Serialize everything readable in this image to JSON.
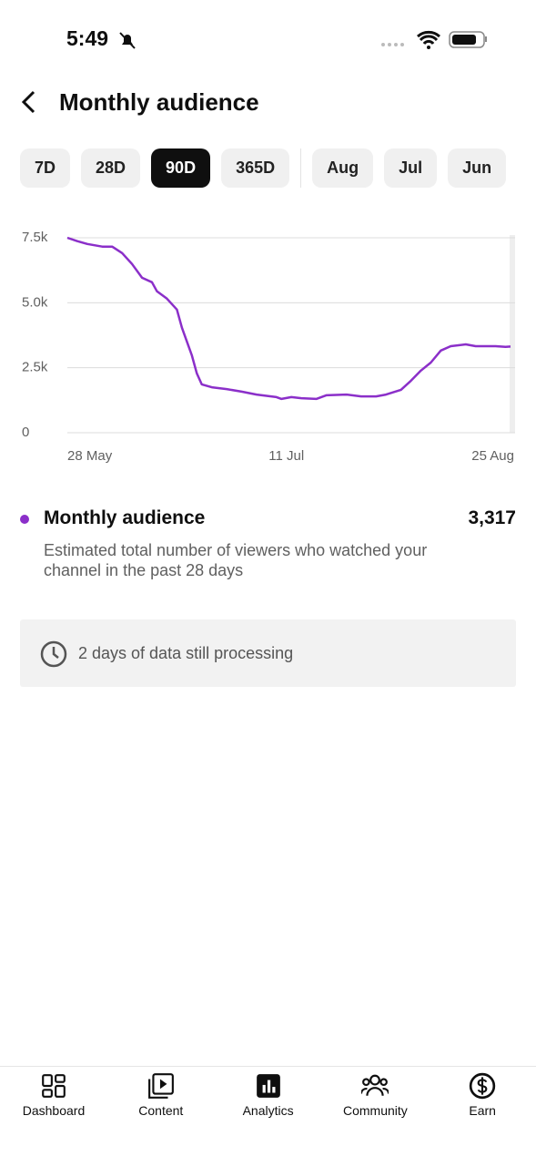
{
  "status_bar": {
    "time": "5:49"
  },
  "header": {
    "title": "Monthly audience"
  },
  "tabs": [
    "7D",
    "28D",
    "90D",
    "365D",
    "Aug",
    "Jul",
    "Jun"
  ],
  "active_tab": 2,
  "chart_data": {
    "type": "line",
    "x": [
      "28 May",
      "30 May",
      "1 Jun",
      "4 Jun",
      "6 Jun",
      "8 Jun",
      "10 Jun",
      "12 Jun",
      "14 Jun",
      "15 Jun",
      "17 Jun",
      "19 Jun",
      "20 Jun",
      "22 Jun",
      "23 Jun",
      "24 Jun",
      "26 Jun",
      "29 Jun",
      "2 Jul",
      "5 Jul",
      "9 Jul",
      "10 Jul",
      "12 Jul",
      "14 Jul",
      "17 Jul",
      "19 Jul",
      "23 Jul",
      "26 Jul",
      "29 Jul",
      "31 Jul",
      "3 Aug",
      "5 Aug",
      "7 Aug",
      "9 Aug",
      "11 Aug",
      "13 Aug",
      "16 Aug",
      "18 Aug",
      "22 Aug",
      "24 Aug",
      "25 Aug"
    ],
    "series": [
      {
        "name": "Monthly audience",
        "color": "#8b2fc9",
        "values": [
          7500,
          7370,
          7260,
          7160,
          7160,
          6910,
          6490,
          5960,
          5790,
          5440,
          5160,
          4740,
          4040,
          2980,
          2280,
          1860,
          1750,
          1680,
          1580,
          1470,
          1370,
          1300,
          1370,
          1330,
          1300,
          1440,
          1470,
          1400,
          1400,
          1470,
          1650,
          2000,
          2390,
          2700,
          3160,
          3330,
          3400,
          3330,
          3330,
          3300,
          3317
        ]
      }
    ],
    "xlim": [
      "28 May",
      "25 Aug"
    ],
    "xticks": [
      "28 May",
      "11 Jul",
      "25 Aug"
    ],
    "ylim": [
      0,
      7500
    ],
    "yticks": [
      0,
      {
        "value": 2500,
        "label": "2.5k"
      },
      {
        "value": 5000,
        "label": "5.0k"
      },
      {
        "value": 7500,
        "label": "7.5k"
      }
    ],
    "grid": true
  },
  "summary": {
    "description": "Estimated total number of viewers who watched your channel in the past 28 days",
    "value": {
      "value": 3317,
      "label": "3,317"
    }
  },
  "notice": {
    "text": "2 days of data still processing"
  },
  "nav": [
    "Dashboard",
    "Content",
    "Analytics",
    "Community",
    "Earn"
  ],
  "active_nav": 2
}
